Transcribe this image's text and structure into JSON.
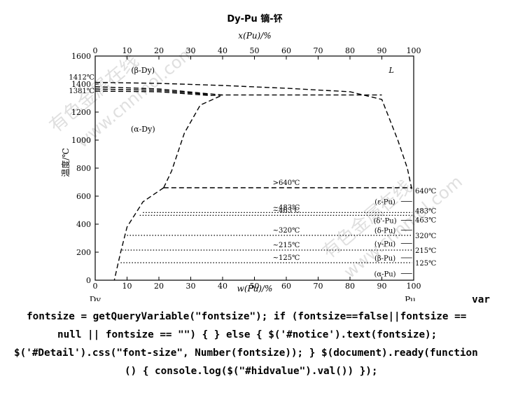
{
  "chart_data": {
    "type": "phase-diagram",
    "title": "Dy-Pu  镝-钚",
    "top_axis": {
      "label": "x(Pu)/%",
      "range": [
        0,
        100
      ],
      "ticks": [
        "0",
        "10",
        "20",
        "30",
        "40",
        "50",
        "60",
        "70",
        "80",
        "90",
        "100"
      ]
    },
    "bottom_axis": {
      "label": "w(Pu)/%",
      "range": [
        0,
        100
      ],
      "ticks": [
        "0",
        "10",
        "20",
        "30",
        "40",
        "50",
        "60",
        "70",
        "80",
        "90",
        "100"
      ],
      "left_element": "Dy",
      "right_element": "Pu"
    },
    "y_axis": {
      "label": "温度/℃",
      "range": [
        0,
        1600
      ],
      "ticks": [
        "0",
        "200",
        "400",
        "600",
        "800",
        "1000",
        "1200",
        "1400",
        "1600"
      ]
    },
    "left_point_labels": [
      {
        "text": "1412℃",
        "y": 1412
      },
      {
        "text": "1381℃",
        "y": 1381
      }
    ],
    "region_labels": [
      {
        "text": "(β-Dy)",
        "x": 15,
        "y": 1480
      },
      {
        "text": "(α-Dy)",
        "x": 15,
        "y": 1060
      },
      {
        "text": "L",
        "x": 93,
        "y": 1480
      }
    ],
    "isotherms": [
      {
        "label": ">640℃",
        "temp": 660,
        "style": "dashed",
        "x_start": 21.5,
        "x_end": 99.5
      },
      {
        "label": "~483℃",
        "temp": 483,
        "style": "dotted",
        "x_start": 15,
        "x_end": 99.5
      },
      {
        "label": "~463℃",
        "temp": 463,
        "style": "dotted",
        "x_start": 14,
        "x_end": 99.5
      },
      {
        "label": "~320℃",
        "temp": 320,
        "style": "dotted",
        "x_start": 10,
        "x_end": 99.5
      },
      {
        "label": "~215℃",
        "temp": 215,
        "style": "dotted",
        "x_start": 8.5,
        "x_end": 99.5
      },
      {
        "label": "~125℃",
        "temp": 125,
        "style": "dotted",
        "x_start": 8,
        "x_end": 99.5
      }
    ],
    "pu_phases": [
      {
        "text": "(ε-Pu)",
        "y": 563
      },
      {
        "text": "(δ'-Pu)",
        "y": 428
      },
      {
        "text": "(δ-Pu)",
        "y": 358
      },
      {
        "text": "(γ-Pu)",
        "y": 263
      },
      {
        "text": "(β-Pu)",
        "y": 160
      },
      {
        "text": "(α-Pu)",
        "y": 48
      }
    ],
    "pu_transitions": [
      {
        "text": "640℃",
        "temp": 640
      },
      {
        "text": "483℃",
        "temp": 483
      },
      {
        "text": "463℃",
        "temp": 463
      },
      {
        "text": "320℃",
        "temp": 320
      },
      {
        "text": "215℃",
        "temp": 215
      },
      {
        "text": "125℃",
        "temp": 125
      }
    ],
    "curves": {
      "liquidus": [
        [
          0,
          1412
        ],
        [
          20,
          1405
        ],
        [
          40,
          1390
        ],
        [
          60,
          1370
        ],
        [
          80,
          1345
        ],
        [
          90,
          1290
        ],
        [
          95,
          1000
        ],
        [
          98,
          800
        ],
        [
          99.5,
          640
        ]
      ],
      "bdy_upper": [
        [
          0,
          1381
        ],
        [
          20,
          1365
        ],
        [
          36,
          1330
        ],
        [
          40,
          1322
        ],
        [
          90,
          1322
        ]
      ],
      "bdy_lower": [
        [
          0,
          1350
        ],
        [
          20,
          1345
        ],
        [
          36,
          1318
        ],
        [
          40,
          1322
        ]
      ],
      "mid_line": [
        [
          0,
          1365
        ],
        [
          20,
          1355
        ],
        [
          36,
          1325
        ]
      ],
      "solvus_1": [
        [
          21.5,
          660
        ],
        [
          24,
          780
        ],
        [
          28,
          1050
        ],
        [
          33,
          1250
        ],
        [
          40,
          1322
        ]
      ],
      "solvus_2": [
        [
          21.5,
          660
        ],
        [
          15,
          560
        ],
        [
          10,
          380
        ],
        [
          8,
          200
        ],
        [
          7,
          100
        ],
        [
          6,
          0
        ]
      ]
    },
    "grid": false
  },
  "code_lines": [
    "var",
    "fontsize = getQueryVariable(\"fontsize\"); if (fontsize==false||fontsize ==",
    "null || fontsize == \"\") { } else { $('#notice').text(fontsize);",
    "$('#Detail').css(\"font-size\", Number(fontsize)); } $(document).ready(function",
    "() { console.log($(\"#hidvalue\").val()) });"
  ],
  "watermarks": [
    "有色金属在线",
    "www.cnnmol.com"
  ]
}
